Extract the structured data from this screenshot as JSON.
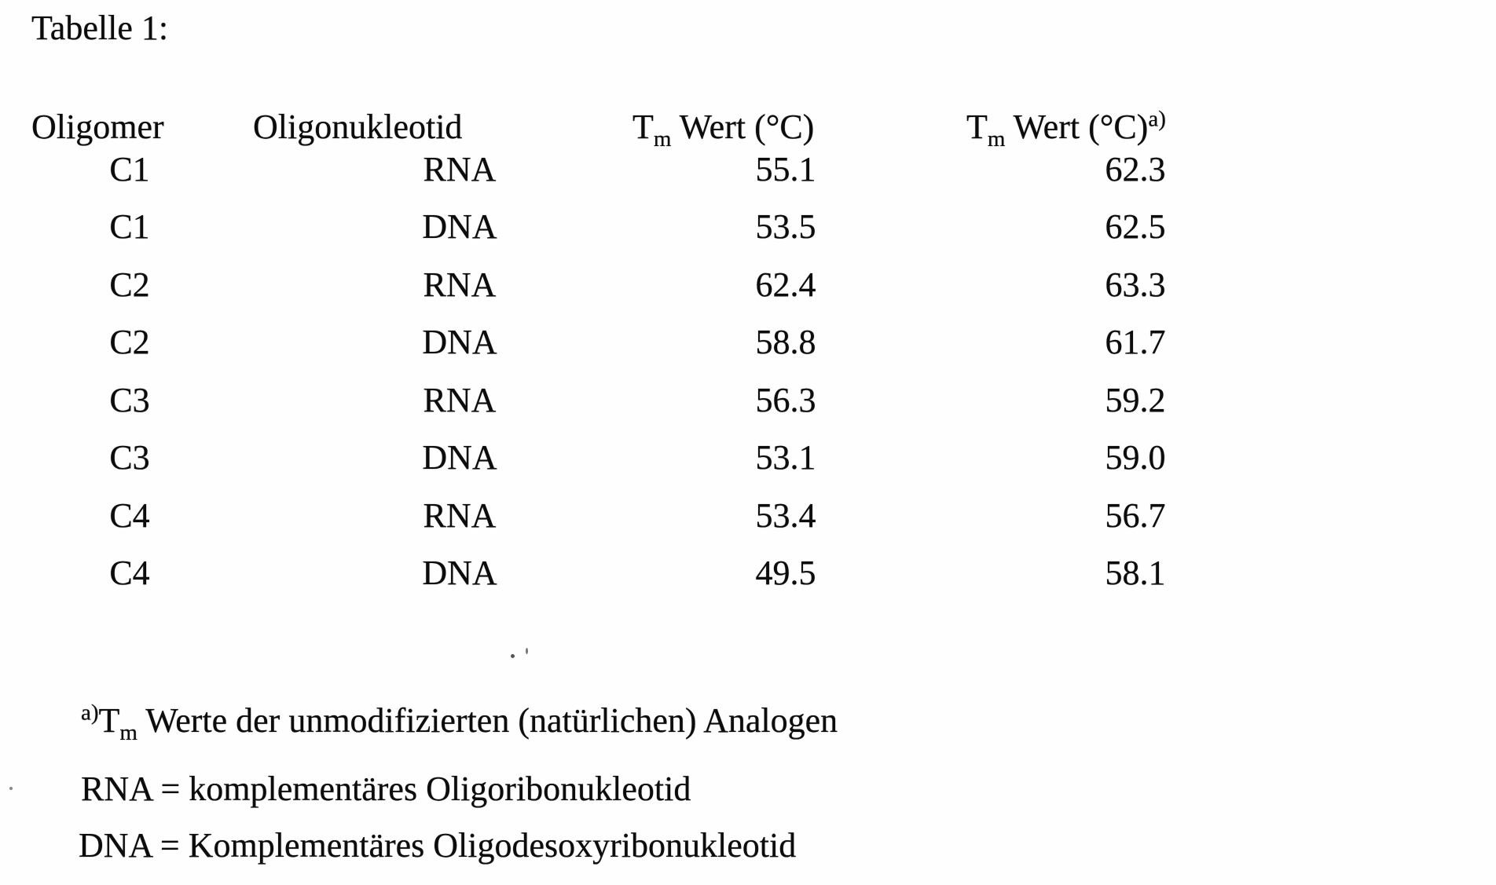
{
  "title": "Tabelle 1:",
  "table": {
    "headers": {
      "col1": "Oligomer",
      "col2": "Oligonukleotid",
      "col3": {
        "pre": "T",
        "sub": "m",
        "post": " Wert (°C)"
      },
      "col4": {
        "pre": "T",
        "sub": "m",
        "post": " Wert (°C)",
        "sup": "a)"
      }
    },
    "rows": [
      {
        "oligomer": "C1",
        "oligonukleotid": "RNA",
        "tm": "55.1",
        "tm_ref": "62.3"
      },
      {
        "oligomer": "C1",
        "oligonukleotid": "DNA",
        "tm": "53.5",
        "tm_ref": "62.5"
      },
      {
        "oligomer": "C2",
        "oligonukleotid": "RNA",
        "tm": "62.4",
        "tm_ref": "63.3"
      },
      {
        "oligomer": "C2",
        "oligonukleotid": "DNA",
        "tm": "58.8",
        "tm_ref": "61.7"
      },
      {
        "oligomer": "C3",
        "oligonukleotid": "RNA",
        "tm": "56.3",
        "tm_ref": "59.2"
      },
      {
        "oligomer": "C3",
        "oligonukleotid": "DNA",
        "tm": "53.1",
        "tm_ref": "59.0"
      },
      {
        "oligomer": "C4",
        "oligonukleotid": "RNA",
        "tm": "53.4",
        "tm_ref": "56.7"
      },
      {
        "oligomer": "C4",
        "oligonukleotid": "DNA",
        "tm": "49.5",
        "tm_ref": "58.1"
      }
    ]
  },
  "footnotes": {
    "a": {
      "sup": "a)",
      "pre": "T",
      "sub": "m",
      "post": " Werte der unmodifizierten (natürlichen) Analogen"
    },
    "rna": "RNA = komplementäres Oligoribonukleotid",
    "dna": "DNA = Komplementäres Oligodesoxyribonukleotid"
  }
}
